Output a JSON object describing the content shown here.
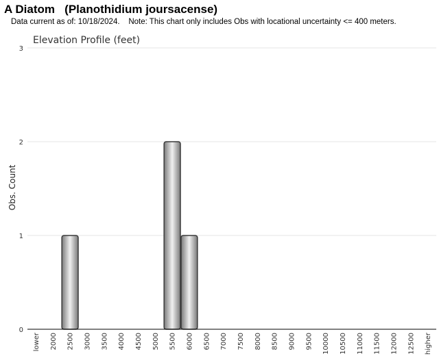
{
  "page": {
    "title": "A Diatom   (Planothidium joursacense)",
    "subtitle": "Data current as of: 10/18/2024.    Note: This chart only includes Obs with locational uncertainty <= 400 meters."
  },
  "chart_data": {
    "type": "bar",
    "title": "Elevation Profile (feet)",
    "xlabel": "",
    "ylabel": "Obs. Count",
    "ylim": [
      0,
      3
    ],
    "yticks": [
      "0",
      "1",
      "2",
      "3"
    ],
    "grid": true,
    "categories": [
      "lower",
      "2000",
      "2500",
      "3000",
      "3500",
      "4000",
      "4500",
      "5000",
      "5500",
      "6000",
      "6500",
      "7000",
      "7500",
      "8000",
      "8500",
      "9000",
      "9500",
      "10000",
      "10500",
      "11000",
      "11500",
      "12000",
      "12500",
      "higher"
    ],
    "values": [
      0,
      0,
      1,
      0,
      0,
      0,
      0,
      0,
      2,
      1,
      0,
      0,
      0,
      0,
      0,
      0,
      0,
      0,
      0,
      0,
      0,
      0,
      0,
      0
    ],
    "colors": {
      "bar_dark": "#7a7a7a",
      "bar_light": "#f0f0f0",
      "bar_edge": "#3a3a3a",
      "grid": "#e6e6e6",
      "axis": "#000000"
    }
  }
}
